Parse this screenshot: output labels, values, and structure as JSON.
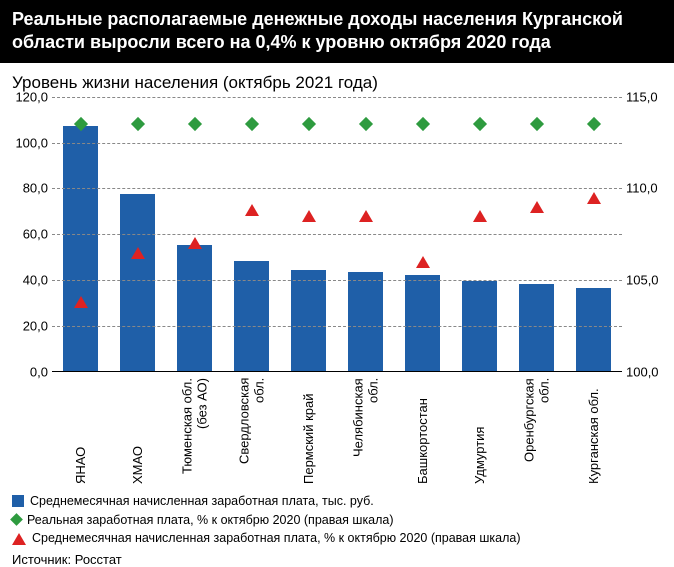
{
  "header": "Реальные располагаемые денежные доходы населения Курганской области выросли всего на 0,4% к уровню октября 2020 года",
  "subtitle": "Уровень жизни населения (октябрь 2021 года)",
  "chart": {
    "type": "bar+markers",
    "categories": [
      "ЯНАО",
      "ХМАО",
      "Тюменская обл. (без АО)",
      "Свердловская обл.",
      "Пермский край",
      "Челябинская обл.",
      "Башкортостан",
      "Удмуртия",
      "Оренбургская обл.",
      "Курганская обл."
    ],
    "bars": {
      "values": [
        107,
        77,
        55,
        48,
        44,
        43,
        42,
        39,
        38,
        36
      ],
      "color": "#1f5fa8"
    },
    "diamonds": {
      "values": [
        113.5,
        113.5,
        113.5,
        113.5,
        113.5,
        113.5,
        113.5,
        113.5,
        113.5,
        113.5
      ],
      "color": "#2e9b3f"
    },
    "triangles": {
      "values": [
        103.8,
        106.5,
        107.0,
        108.8,
        108.5,
        108.5,
        106.0,
        108.5,
        109.0,
        109.5
      ],
      "color": "#d22"
    },
    "yleft": {
      "min": 0,
      "max": 120,
      "ticks": [
        0,
        20,
        40,
        60,
        80,
        100,
        120
      ],
      "labels": [
        "0,0",
        "20,0",
        "40,0",
        "60,0",
        "80,0",
        "100,0",
        "120,0"
      ]
    },
    "yright": {
      "min": 100,
      "max": 115,
      "ticks": [
        100,
        105,
        110,
        115
      ],
      "labels": [
        "100,0",
        "105,0",
        "110,0",
        "115,0"
      ]
    },
    "grid_color": "#888",
    "label_fontsize": 13
  },
  "legend": {
    "items": [
      {
        "shape": "square",
        "color": "#1f5fa8",
        "text": "Среднемесячная начисленная заработная плата, тыс. руб."
      },
      {
        "shape": "diamond",
        "color": "#2e9b3f",
        "text": "Реальная заработная плата, % к октябрю 2020 (правая шкала)"
      },
      {
        "shape": "triangle",
        "color": "#d22",
        "text": "Среднемесячная начисленная заработная плата, % к октябрю 2020 (правая шкала)"
      }
    ]
  },
  "source": "Источник: Росстат"
}
